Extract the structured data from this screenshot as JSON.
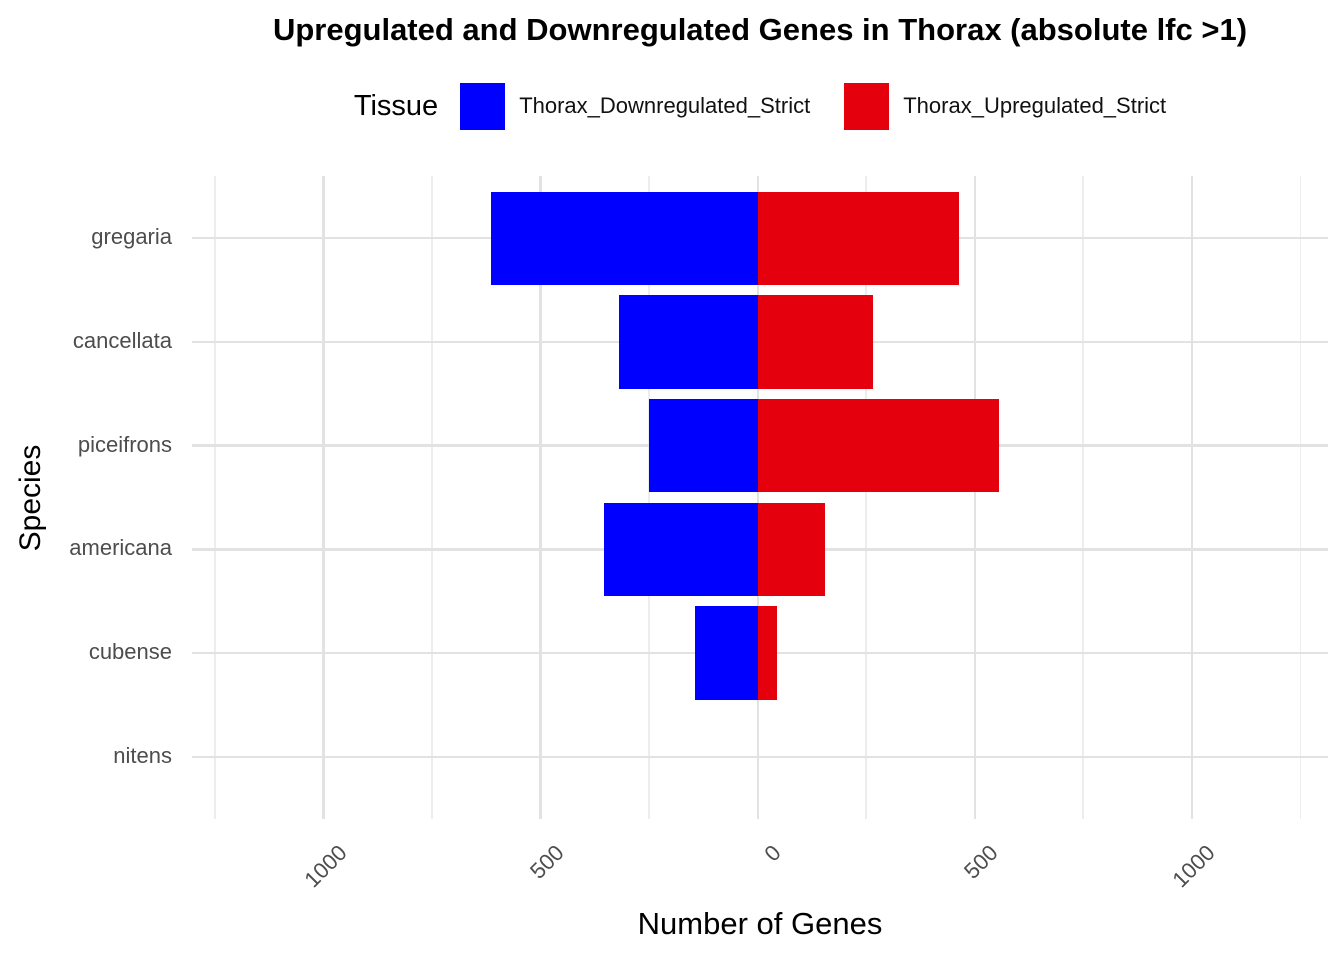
{
  "title": "Upregulated and Downregulated Genes in Thorax (absolute lfc >1)",
  "legend": {
    "title": "Tissue",
    "entries": [
      {
        "label": "Thorax_Downregulated_Strict",
        "color": "#0000FF"
      },
      {
        "label": "Thorax_Upregulated_Strict",
        "color": "#E4000C"
      }
    ]
  },
  "chart_data": {
    "type": "bar",
    "orientation": "horizontal-diverging",
    "title": "Upregulated and Downregulated Genes in Thorax (absolute lfc >1)",
    "xlabel": "Number of Genes",
    "ylabel": "Species",
    "categories": [
      "gregaria",
      "cancellata",
      "piceifrons",
      "americana",
      "cubense",
      "nitens"
    ],
    "series": [
      {
        "name": "Thorax_Downregulated_Strict",
        "direction": "negative",
        "color": "#0000FF",
        "values": [
          615,
          320,
          250,
          355,
          145,
          0
        ]
      },
      {
        "name": "Thorax_Upregulated_Strict",
        "direction": "positive",
        "color": "#E4000C",
        "values": [
          465,
          265,
          555,
          155,
          45,
          0
        ]
      }
    ],
    "x_axis": {
      "xlim": [
        -1303,
        1314
      ],
      "tick_values": [
        -1000,
        -500,
        0,
        500,
        1000
      ],
      "tick_labels": [
        "1000",
        "500",
        "0",
        "500",
        "1000"
      ],
      "minor_tick_values": [
        -1250,
        -750,
        -250,
        250,
        750,
        1250
      ],
      "label_rotation_deg": 45
    },
    "grid": {
      "background": "#FFFFFF",
      "major_color": "#E2E2E2",
      "minor_color": "#EDEDED",
      "horizontal_major": "per-category",
      "vertical_minor_step": 250
    },
    "bar_category_width": 0.9
  }
}
